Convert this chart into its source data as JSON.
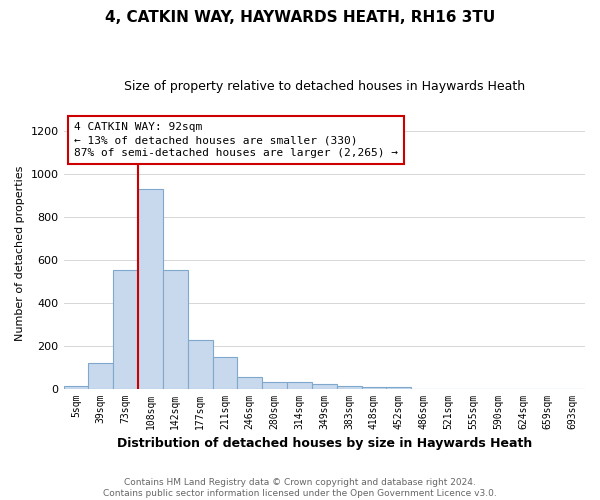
{
  "title": "4, CATKIN WAY, HAYWARDS HEATH, RH16 3TU",
  "subtitle": "Size of property relative to detached houses in Haywards Heath",
  "xlabel": "Distribution of detached houses by size in Haywards Heath",
  "ylabel": "Number of detached properties",
  "categories": [
    "5sqm",
    "39sqm",
    "73sqm",
    "108sqm",
    "142sqm",
    "177sqm",
    "211sqm",
    "246sqm",
    "280sqm",
    "314sqm",
    "349sqm",
    "383sqm",
    "418sqm",
    "452sqm",
    "486sqm",
    "521sqm",
    "555sqm",
    "590sqm",
    "624sqm",
    "659sqm",
    "693sqm"
  ],
  "values": [
    10,
    120,
    550,
    930,
    550,
    225,
    145,
    55,
    30,
    30,
    20,
    10,
    5,
    5,
    0,
    0,
    0,
    0,
    0,
    0,
    0
  ],
  "bar_color": "#c8d9ed",
  "bar_edge_color": "#7fa8cc",
  "vline_x": 2.5,
  "vline_color": "#cc0000",
  "ylim": [
    0,
    1260
  ],
  "yticks": [
    0,
    200,
    400,
    600,
    800,
    1000,
    1200
  ],
  "annotation_line1": "4 CATKIN WAY: 92sqm",
  "annotation_line2": "← 13% of detached houses are smaller (330)",
  "annotation_line3": "87% of semi-detached houses are larger (2,265) →",
  "annotation_box_color": "#cc0000",
  "footnote_line1": "Contains HM Land Registry data © Crown copyright and database right 2024.",
  "footnote_line2": "Contains public sector information licensed under the Open Government Licence v3.0.",
  "background_color": "#ffffff",
  "grid_color": "#d0d0d0",
  "title_fontsize": 11,
  "subtitle_fontsize": 9,
  "xlabel_fontsize": 9,
  "ylabel_fontsize": 8
}
